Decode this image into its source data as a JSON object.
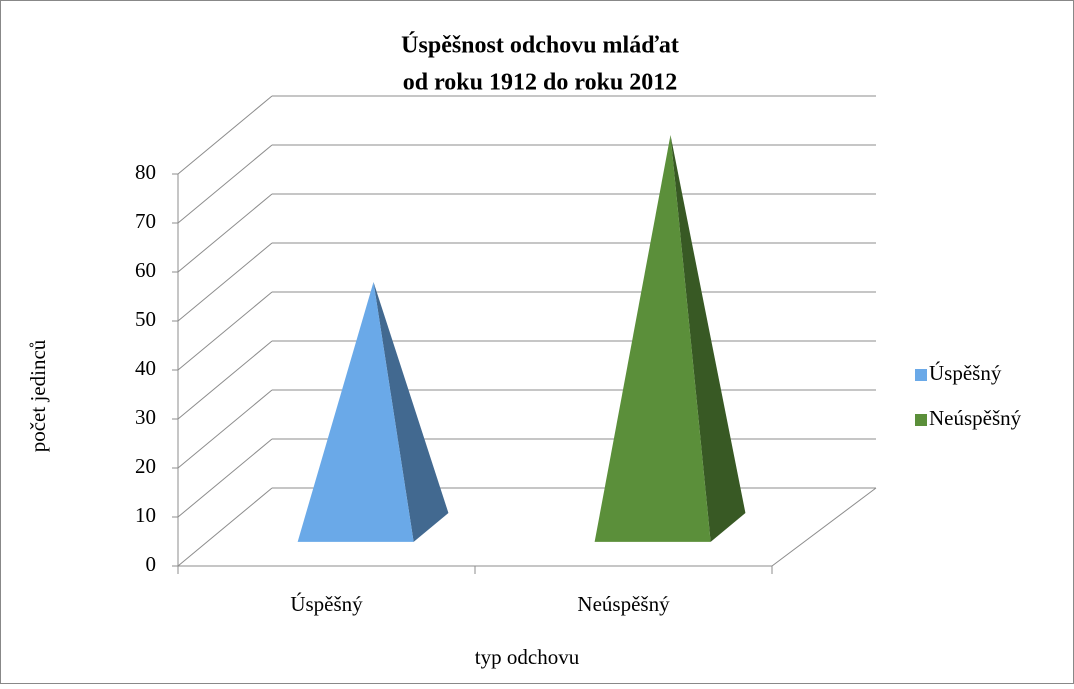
{
  "chart_data": {
    "type": "pyramid",
    "title": [
      "Úspěšnost odchovu mláďat",
      "od roku 1912 do roku 2012"
    ],
    "x_label": "typ odchovu",
    "y_label": "počet jedinců",
    "categories": [
      "Úspěšný",
      "Neúspěšný"
    ],
    "series": [
      {
        "name": "Úspěšný",
        "color": "#6aa9e8",
        "values": [
          50,
          null
        ]
      },
      {
        "name": "Neúspěšný",
        "color": "#5b8f3a",
        "values": [
          null,
          80
        ]
      }
    ],
    "ylim": [
      0,
      80
    ],
    "yticks": [
      0,
      10,
      20,
      30,
      40,
      50,
      60,
      70,
      80
    ],
    "grid": true,
    "legend": "right"
  }
}
